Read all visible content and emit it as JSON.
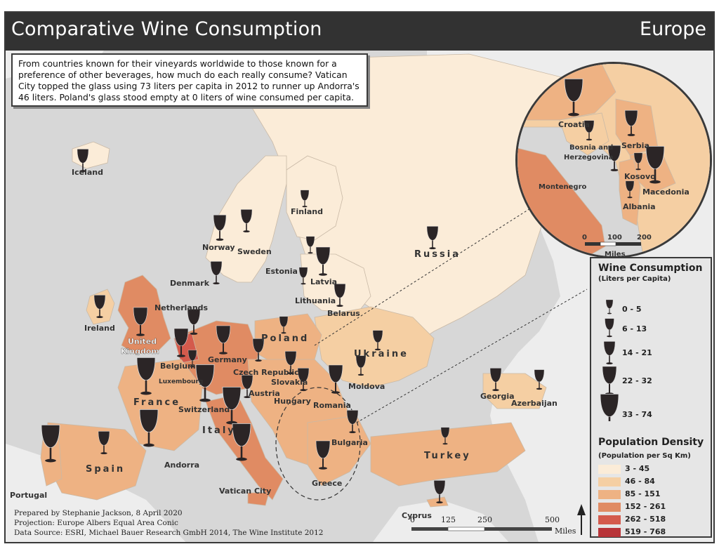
{
  "header": {
    "title": "Comparative Wine Consumption",
    "region": "Europe"
  },
  "intro": "From countries known for their vineyards worldwide to those known for a preference of other beverages, how much do each really consume? Vatican City topped the glass using 73 liters per capita in 2012 to runner up Andorra's 46 liters. Poland's glass stood empty at 0 liters of wine consumed per capita.",
  "countries": {
    "iceland": "Iceland",
    "finland": "Finland",
    "norway": "Norway",
    "sweden": "Sweden",
    "russia": "Russia",
    "estonia": "Estonia",
    "latvia": "Latvia",
    "denmark": "Denmark",
    "lithuania": "Lithuania",
    "belarus": "Belarus",
    "netherlands": "Netherlands",
    "ireland": "Ireland",
    "uk": "United\nKingdom",
    "uk1": "United",
    "uk2": "Kingdom",
    "poland": "Poland",
    "ukraine": "Ukraine",
    "germany": "Germany",
    "belgium": "Belgium",
    "luxembourg": "Luxembourg",
    "czech": "Czech Republic",
    "slovakia": "Slovakia",
    "moldova": "Moldova",
    "georgia": "Georgia",
    "azerbaijan": "Azerbaijan",
    "austria": "Austria",
    "hungary": "Hungary",
    "romania": "Romania",
    "france": "France",
    "switzerland": "Switzerland",
    "italy": "Italy",
    "bulgaria": "Bulgaria",
    "andorra": "Andorra",
    "spain": "Spain",
    "turkey": "Turkey",
    "portugal": "Portugal",
    "vatican": "Vatican City",
    "greece": "Greece",
    "cyprus": "Cyprus"
  },
  "inset": {
    "croatia": "Croatia",
    "bosnia1": "Bosnia and",
    "bosnia2": "Herzegovina",
    "serbia": "Serbia",
    "kosovo": "Kosovo",
    "montenegro": "Montenegro",
    "macedonia": "Macedonia",
    "albania": "Albania",
    "scale_ticks": [
      "0",
      "100",
      "200"
    ],
    "scale_unit": "Miles"
  },
  "legend": {
    "wine_title": "Wine Consumption",
    "wine_subtitle": "(Liters per Capita)",
    "wine_classes": [
      "0 - 5",
      "6 - 13",
      "14 - 21",
      "22 - 32",
      "33 - 74"
    ],
    "density_title": "Population Density",
    "density_subtitle": "(Population per Sq Km)",
    "density_classes": [
      {
        "label": "3 - 45",
        "color": "#fbecd8"
      },
      {
        "label": "46 - 84",
        "color": "#f5cfa3"
      },
      {
        "label": "85 - 151",
        "color": "#eeb283"
      },
      {
        "label": "152 - 261",
        "color": "#e08b63"
      },
      {
        "label": "262 - 518",
        "color": "#d45a4c"
      },
      {
        "label": "519 - 768",
        "color": "#b83438"
      }
    ]
  },
  "scale": {
    "ticks": [
      "0",
      "125",
      "250",
      "500"
    ],
    "unit": "Miles"
  },
  "credits": {
    "line1": "Prepared by Stephanie Jackson, 8 April 2020",
    "line2": "Projection: Europe Albers Equal Area Conic",
    "line3": "Data Source: ESRI, Michael Bauer Research GmbH 2014, The Wine Institute 2012"
  },
  "colors": {
    "header": "#323232",
    "sea": "#d7d7d7",
    "glass": "#2b2526",
    "wine": "#5a1a22"
  },
  "icons": {
    "glass": "wine-glass-icon",
    "north": "north-arrow-icon"
  }
}
